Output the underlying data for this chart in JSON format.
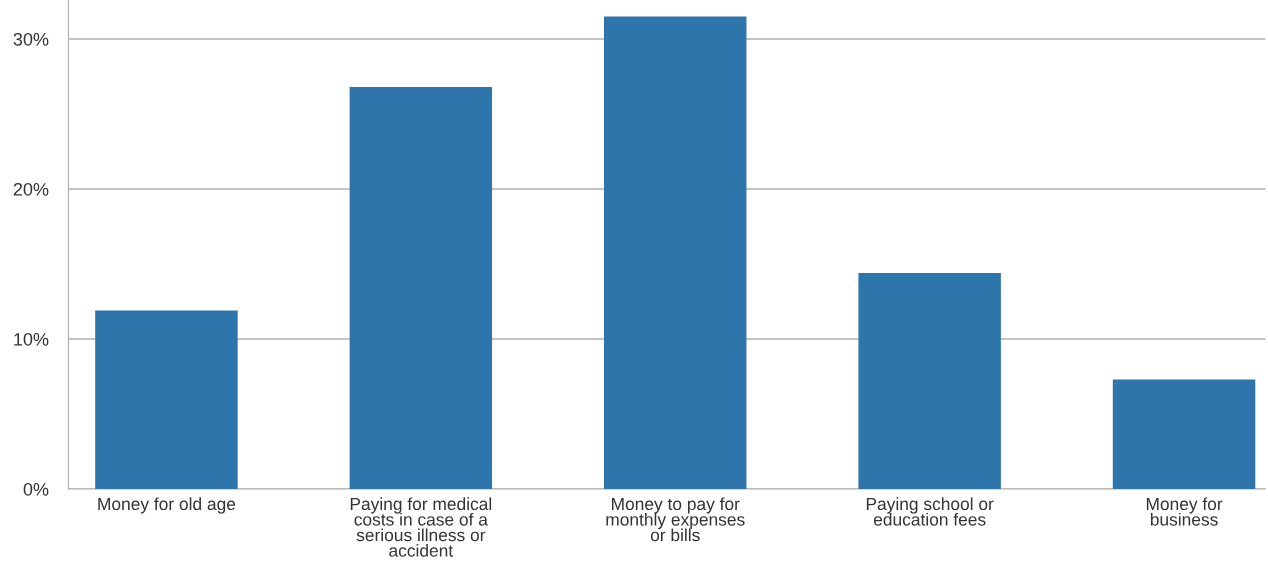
{
  "chart_data": {
    "type": "bar",
    "categories": [
      "Money for old age",
      "Paying for medical\ncosts in case of a\nserious illness or\naccident",
      "Money to pay for\nmonthly expenses\nor bills",
      "Paying school or\neducation fees",
      "Money for\nbusiness"
    ],
    "values": [
      11.9,
      26.8,
      31.5,
      14.4,
      7.3
    ],
    "color": "#2e75ab",
    "ylim": [
      0,
      32.6
    ],
    "yticks": [
      {
        "value": 0,
        "label": "0%"
      },
      {
        "value": 10,
        "label": "10%"
      },
      {
        "value": 20,
        "label": "20%"
      },
      {
        "value": 30,
        "label": "30%"
      }
    ],
    "grid": "y"
  }
}
